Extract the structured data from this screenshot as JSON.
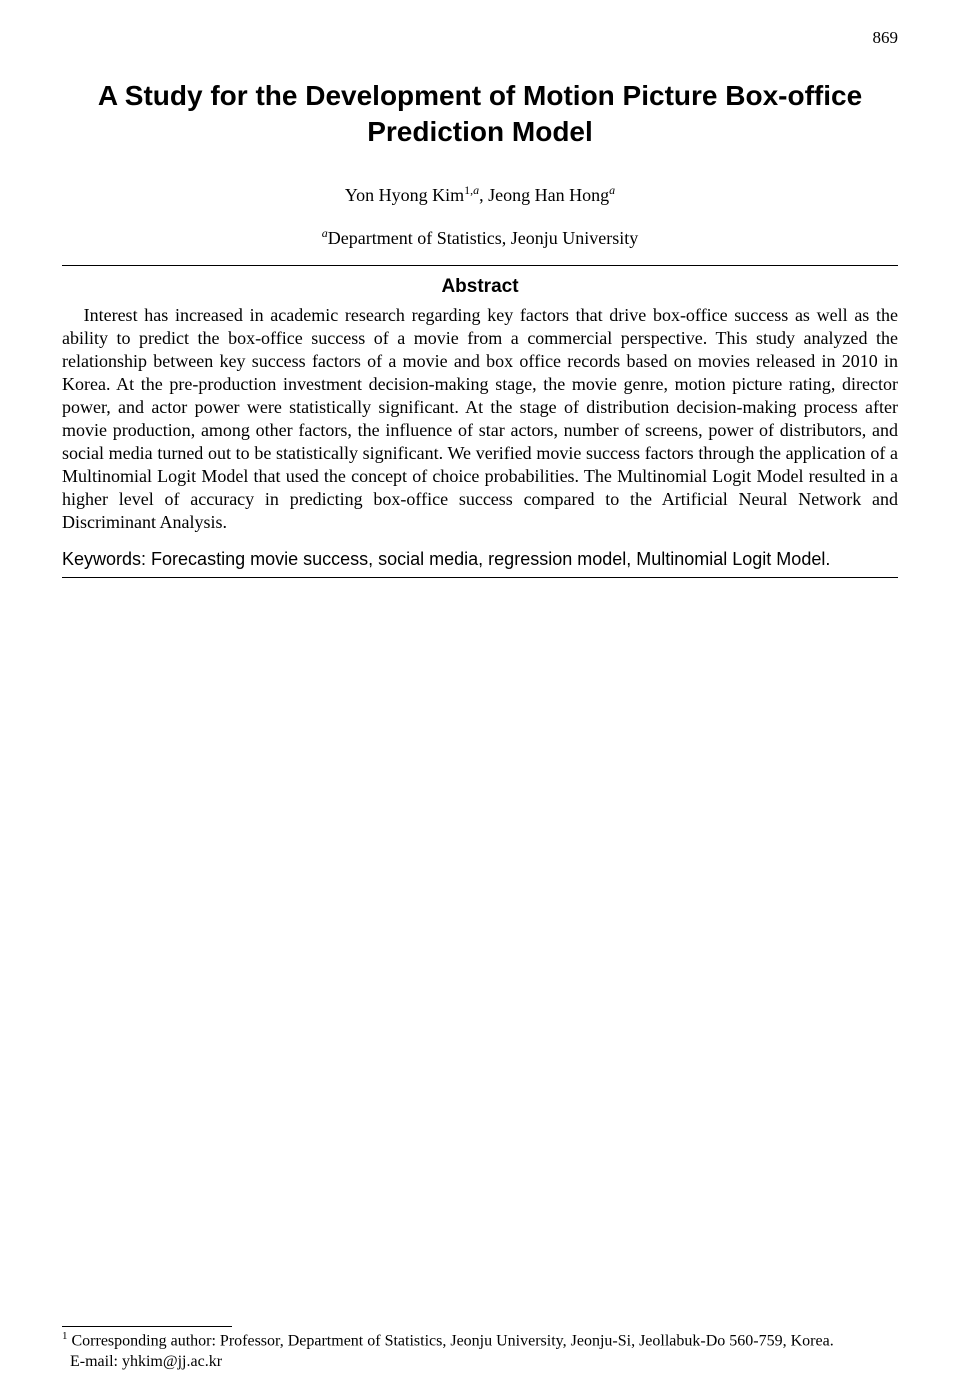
{
  "page_number": "869",
  "title": "A Study for the Development of Motion Picture Box-office Prediction Model",
  "authors_text": "Yon Hyong Kim",
  "author1_sup1": "1,",
  "author1_sup2": "a",
  "authors_sep": ", ",
  "author2": "Jeong Han Hong",
  "author2_sup": "a",
  "affiliation_sup": "a",
  "affiliation_text": "Department of Statistics, Jeonju University",
  "abstract_heading": "Abstract",
  "abstract_body": "Interest has increased in academic research regarding key factors that drive box-office success as well as the ability to predict the box-office success of a movie from a commercial perspective. This study analyzed the relationship between key success factors of a movie and box office records based on movies released in 2010 in Korea. At the pre-production investment decision-making stage, the movie genre, motion picture rating, director power, and actor power were statistically significant. At the stage of distribution decision-making process after movie production, among other factors, the influence of star actors, number of screens, power of distributors, and social media turned out to be statistically significant. We verified movie success factors through the application of a Multinomial Logit Model that used the concept of choice probabilities. The Multinomial Logit Model resulted in a higher level of accuracy in predicting box-office success compared to the Artificial Neural Network and Discriminant Analysis.",
  "keywords_label": "Keywords:",
  "keywords_text": " Forecasting movie success, social media, regression model, Multinomial Logit Model.",
  "footnote_sup": "1",
  "footnote_line1": " Corresponding author: Professor, Department of Statistics, Jeonju University, Jeonju-Si, Jeollabuk-Do 560-759, Korea.",
  "footnote_line2": "E-mail: yhkim@jj.ac.kr"
}
